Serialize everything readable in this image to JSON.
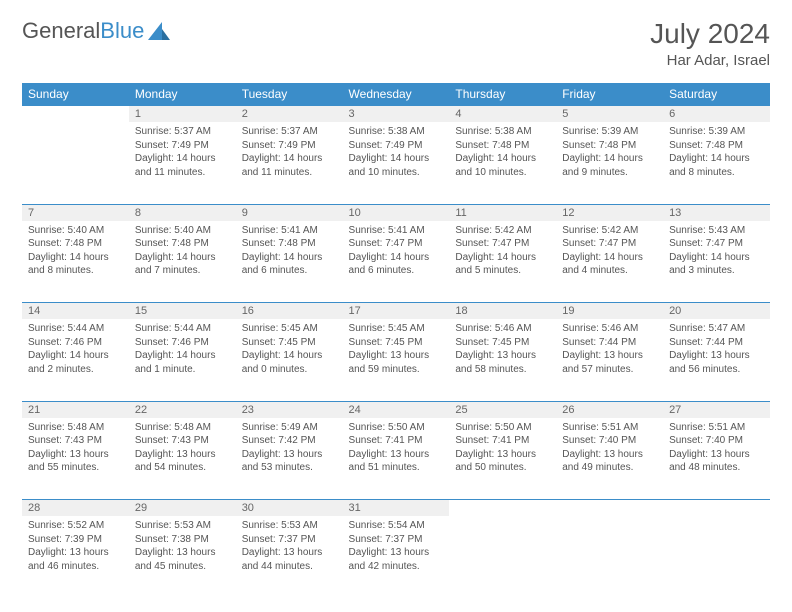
{
  "logo": {
    "part1": "General",
    "part2": "Blue"
  },
  "title": "July 2024",
  "subtitle": "Har Adar, Israel",
  "colors": {
    "header_bg": "#3b8dc9",
    "header_text": "#ffffff",
    "daynum_bg": "#f0f0f0",
    "row_border": "#3b8dc9",
    "text": "#555555",
    "logo_blue": "#3b8dc9"
  },
  "weekdays": [
    "Sunday",
    "Monday",
    "Tuesday",
    "Wednesday",
    "Thursday",
    "Friday",
    "Saturday"
  ],
  "weeks": [
    {
      "days": [
        null,
        {
          "n": "1",
          "sr": "5:37 AM",
          "ss": "7:49 PM",
          "dl": "14 hours and 11 minutes."
        },
        {
          "n": "2",
          "sr": "5:37 AM",
          "ss": "7:49 PM",
          "dl": "14 hours and 11 minutes."
        },
        {
          "n": "3",
          "sr": "5:38 AM",
          "ss": "7:49 PM",
          "dl": "14 hours and 10 minutes."
        },
        {
          "n": "4",
          "sr": "5:38 AM",
          "ss": "7:48 PM",
          "dl": "14 hours and 10 minutes."
        },
        {
          "n": "5",
          "sr": "5:39 AM",
          "ss": "7:48 PM",
          "dl": "14 hours and 9 minutes."
        },
        {
          "n": "6",
          "sr": "5:39 AM",
          "ss": "7:48 PM",
          "dl": "14 hours and 8 minutes."
        }
      ]
    },
    {
      "days": [
        {
          "n": "7",
          "sr": "5:40 AM",
          "ss": "7:48 PM",
          "dl": "14 hours and 8 minutes."
        },
        {
          "n": "8",
          "sr": "5:40 AM",
          "ss": "7:48 PM",
          "dl": "14 hours and 7 minutes."
        },
        {
          "n": "9",
          "sr": "5:41 AM",
          "ss": "7:48 PM",
          "dl": "14 hours and 6 minutes."
        },
        {
          "n": "10",
          "sr": "5:41 AM",
          "ss": "7:47 PM",
          "dl": "14 hours and 6 minutes."
        },
        {
          "n": "11",
          "sr": "5:42 AM",
          "ss": "7:47 PM",
          "dl": "14 hours and 5 minutes."
        },
        {
          "n": "12",
          "sr": "5:42 AM",
          "ss": "7:47 PM",
          "dl": "14 hours and 4 minutes."
        },
        {
          "n": "13",
          "sr": "5:43 AM",
          "ss": "7:47 PM",
          "dl": "14 hours and 3 minutes."
        }
      ]
    },
    {
      "days": [
        {
          "n": "14",
          "sr": "5:44 AM",
          "ss": "7:46 PM",
          "dl": "14 hours and 2 minutes."
        },
        {
          "n": "15",
          "sr": "5:44 AM",
          "ss": "7:46 PM",
          "dl": "14 hours and 1 minute."
        },
        {
          "n": "16",
          "sr": "5:45 AM",
          "ss": "7:45 PM",
          "dl": "14 hours and 0 minutes."
        },
        {
          "n": "17",
          "sr": "5:45 AM",
          "ss": "7:45 PM",
          "dl": "13 hours and 59 minutes."
        },
        {
          "n": "18",
          "sr": "5:46 AM",
          "ss": "7:45 PM",
          "dl": "13 hours and 58 minutes."
        },
        {
          "n": "19",
          "sr": "5:46 AM",
          "ss": "7:44 PM",
          "dl": "13 hours and 57 minutes."
        },
        {
          "n": "20",
          "sr": "5:47 AM",
          "ss": "7:44 PM",
          "dl": "13 hours and 56 minutes."
        }
      ]
    },
    {
      "days": [
        {
          "n": "21",
          "sr": "5:48 AM",
          "ss": "7:43 PM",
          "dl": "13 hours and 55 minutes."
        },
        {
          "n": "22",
          "sr": "5:48 AM",
          "ss": "7:43 PM",
          "dl": "13 hours and 54 minutes."
        },
        {
          "n": "23",
          "sr": "5:49 AM",
          "ss": "7:42 PM",
          "dl": "13 hours and 53 minutes."
        },
        {
          "n": "24",
          "sr": "5:50 AM",
          "ss": "7:41 PM",
          "dl": "13 hours and 51 minutes."
        },
        {
          "n": "25",
          "sr": "5:50 AM",
          "ss": "7:41 PM",
          "dl": "13 hours and 50 minutes."
        },
        {
          "n": "26",
          "sr": "5:51 AM",
          "ss": "7:40 PM",
          "dl": "13 hours and 49 minutes."
        },
        {
          "n": "27",
          "sr": "5:51 AM",
          "ss": "7:40 PM",
          "dl": "13 hours and 48 minutes."
        }
      ]
    },
    {
      "days": [
        {
          "n": "28",
          "sr": "5:52 AM",
          "ss": "7:39 PM",
          "dl": "13 hours and 46 minutes."
        },
        {
          "n": "29",
          "sr": "5:53 AM",
          "ss": "7:38 PM",
          "dl": "13 hours and 45 minutes."
        },
        {
          "n": "30",
          "sr": "5:53 AM",
          "ss": "7:37 PM",
          "dl": "13 hours and 44 minutes."
        },
        {
          "n": "31",
          "sr": "5:54 AM",
          "ss": "7:37 PM",
          "dl": "13 hours and 42 minutes."
        },
        null,
        null,
        null
      ]
    }
  ]
}
